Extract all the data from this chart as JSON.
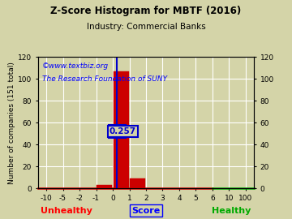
{
  "title": "Z-Score Histogram for MBTF (2016)",
  "subtitle": "Industry: Commercial Banks",
  "watermark1": "©www.textbiz.org",
  "watermark2": "The Research Foundation of SUNY",
  "xlabel_left": "Unhealthy",
  "xlabel_center": "Score",
  "xlabel_right": "Healthy",
  "ylabel_left": "Number of companies (151 total)",
  "xtick_labels": [
    "-10",
    "-5",
    "-2",
    "-1",
    "0",
    "1",
    "2",
    "3",
    "4",
    "5",
    "6",
    "10",
    "100"
  ],
  "xtick_positions": [
    -10,
    -5,
    -2,
    -1,
    0,
    1,
    2,
    3,
    4,
    5,
    6,
    10,
    100
  ],
  "ylim": [
    0,
    120
  ],
  "yticks_left": [
    0,
    20,
    40,
    60,
    80,
    100,
    120
  ],
  "yticks_right": [
    0,
    20,
    40,
    60,
    80,
    100,
    120
  ],
  "bar_edges": [
    -10,
    -5,
    -2,
    -1,
    0,
    1,
    2,
    3,
    4,
    5,
    6,
    10,
    100
  ],
  "bar_heights": [
    0,
    0,
    0,
    3,
    107,
    9,
    0,
    0,
    0,
    0,
    0,
    0
  ],
  "bar_color": "#cc0000",
  "marker_value": 0.257,
  "marker_color": "#0000cc",
  "marker_label": "0.257",
  "background_color": "#d4d4a8",
  "grid_color": "#ffffff",
  "title_fontsize": 8.5,
  "subtitle_fontsize": 7.5,
  "tick_fontsize": 6.5,
  "watermark_fontsize": 6.5,
  "xlabel_fontsize": 8,
  "ylabel_fontsize": 6.5,
  "figsize": [
    3.6,
    2.7
  ],
  "dpi": 100
}
